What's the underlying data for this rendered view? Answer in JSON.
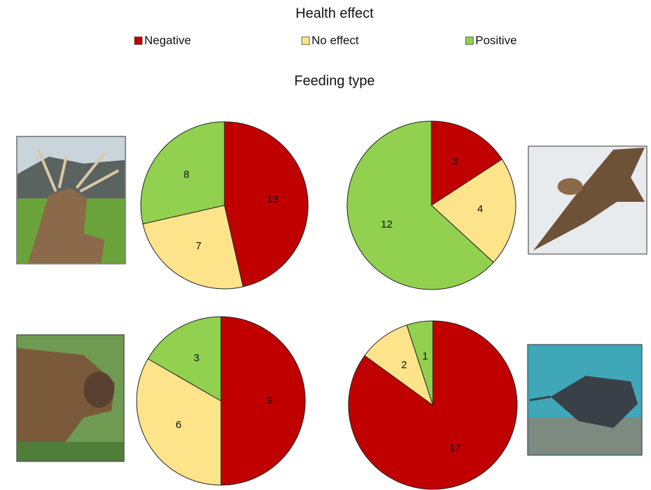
{
  "legend_title": "Health effect",
  "title": "Feeding type",
  "chart_data": [
    {
      "type": "pie",
      "categories": [
        "Negative",
        "No effect",
        "Positive"
      ],
      "values": [
        13,
        7,
        8
      ],
      "colors": [
        "#c00000",
        "#fde38a",
        "#92d050"
      ]
    },
    {
      "type": "pie",
      "categories": [
        "Negative",
        "No effect",
        "Positive"
      ],
      "values": [
        3,
        4,
        12
      ],
      "colors": [
        "#c00000",
        "#fde38a",
        "#92d050"
      ]
    },
    {
      "type": "pie",
      "categories": [
        "Negative",
        "No effect",
        "Positive"
      ],
      "values": [
        9,
        6,
        3
      ],
      "colors": [
        "#c00000",
        "#fde38a",
        "#92d050"
      ]
    },
    {
      "type": "pie",
      "categories": [
        "Negative",
        "No effect",
        "Positive"
      ],
      "values": [
        17,
        2,
        1
      ],
      "colors": [
        "#c00000",
        "#fde38a",
        "#92d050"
      ]
    }
  ]
}
